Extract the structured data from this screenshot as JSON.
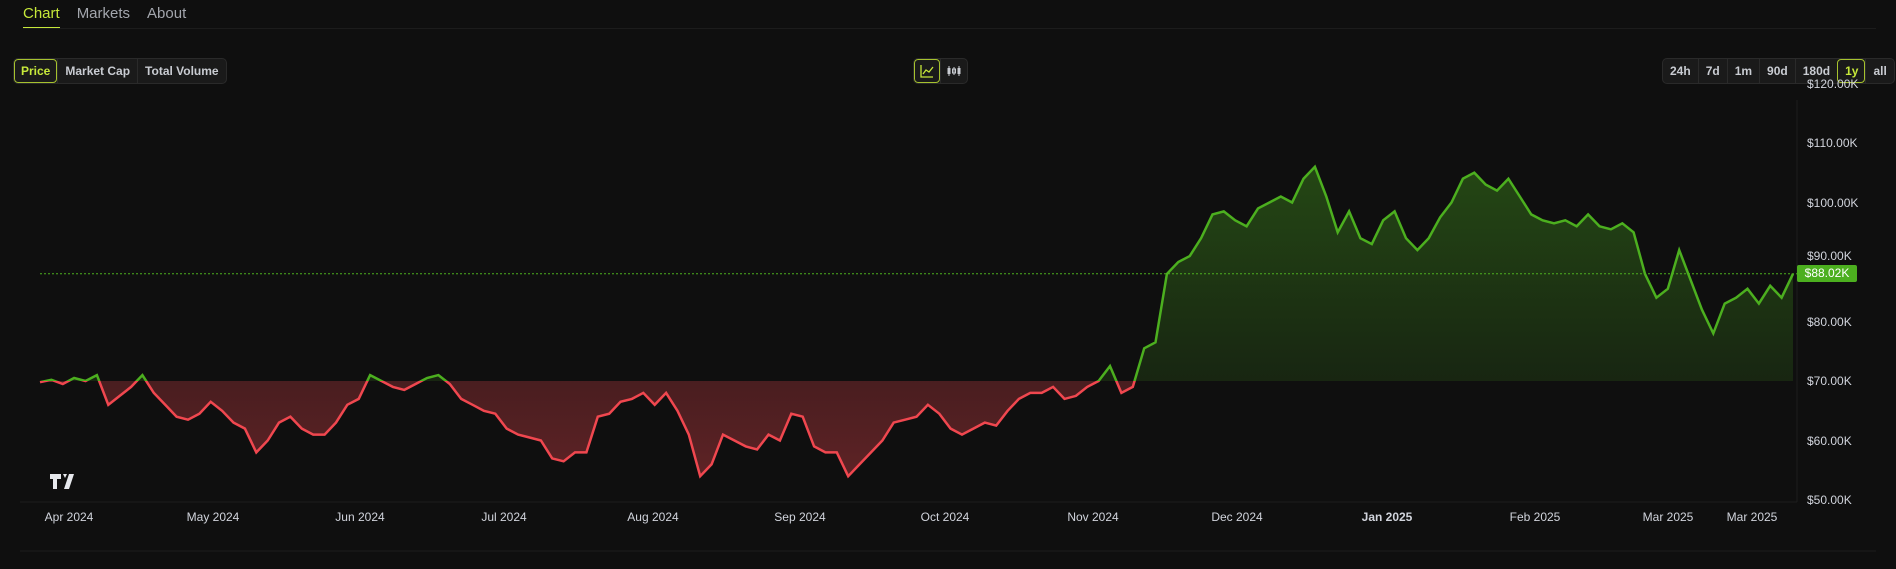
{
  "tabs": [
    {
      "label": "Chart"
    },
    {
      "label": "Markets"
    },
    {
      "label": "About"
    }
  ],
  "metric_buttons": [
    {
      "label": "Price"
    },
    {
      "label": "Market Cap"
    },
    {
      "label": "Total Volume"
    }
  ],
  "chart_type_buttons": [
    {
      "icon": "line-chart-icon"
    },
    {
      "icon": "candlestick-icon"
    }
  ],
  "range_buttons": [
    {
      "label": "24h"
    },
    {
      "label": "7d"
    },
    {
      "label": "1m"
    },
    {
      "label": "90d"
    },
    {
      "label": "180d"
    },
    {
      "label": "1y"
    },
    {
      "label": "all"
    }
  ],
  "colors": {
    "accent": "#c6e83a",
    "up": "#4caf1f",
    "down": "#f0474f"
  },
  "chart_data": {
    "type": "area",
    "baseline": 70000,
    "current_price_label": "$88.02K",
    "current_price": 88020,
    "ylim": [
      47000,
      125000
    ],
    "y_ticks": [
      {
        "v": 120000,
        "label": "$120.00K"
      },
      {
        "v": 110000,
        "label": "$110.00K"
      },
      {
        "v": 100000,
        "label": "$100.00K"
      },
      {
        "v": 90000,
        "label": "$90.00K"
      },
      {
        "v": 80000,
        "label": "$80.00K"
      },
      {
        "v": 70000,
        "label": "$70.00K"
      },
      {
        "v": 60000,
        "label": "$60.00K"
      },
      {
        "v": 50000,
        "label": "$50.00K"
      }
    ],
    "x_ticks": [
      {
        "label": "Apr 2024"
      },
      {
        "label": "May 2024"
      },
      {
        "label": "Jun 2024"
      },
      {
        "label": "Jul 2024"
      },
      {
        "label": "Aug 2024"
      },
      {
        "label": "Sep 2024"
      },
      {
        "label": "Oct 2024"
      },
      {
        "label": "Nov 2024"
      },
      {
        "label": "Dec 2024"
      },
      {
        "label": "Jan 2025"
      },
      {
        "label": "Feb 2025"
      },
      {
        "label": "Mar 2025"
      },
      {
        "label": "Mar 2025"
      }
    ],
    "series": [
      {
        "name": "Price (K USD)",
        "values": [
          69.8,
          70.2,
          69.5,
          70.5,
          70,
          71,
          66,
          67.5,
          69,
          71,
          68,
          66,
          64,
          63.5,
          64.5,
          66.5,
          65,
          63,
          62,
          58,
          60,
          63,
          64,
          62,
          61,
          61,
          63,
          66,
          67,
          71,
          70,
          69,
          68.5,
          69.5,
          70.5,
          71,
          69.5,
          67,
          66,
          65,
          64.5,
          62,
          61,
          60.5,
          60,
          57,
          56.5,
          58,
          58,
          64,
          64.5,
          66.5,
          67,
          68,
          66,
          68,
          65,
          61,
          54,
          56,
          61,
          60,
          59,
          58.5,
          61,
          60,
          64.5,
          64,
          59,
          58,
          58,
          54,
          56,
          58,
          60,
          63,
          63.5,
          64,
          66,
          64.5,
          62,
          61,
          62,
          63,
          62.5,
          65,
          67,
          68,
          68,
          69,
          67,
          67.5,
          69,
          70,
          72.5,
          68,
          69,
          75.5,
          76.5,
          88,
          90,
          91,
          94,
          98,
          98.5,
          97,
          96,
          99,
          100,
          101,
          100,
          104,
          106,
          101,
          95,
          98.5,
          94,
          93,
          97,
          98.5,
          94,
          92,
          94,
          97.5,
          100,
          104,
          105,
          103,
          102,
          104,
          101,
          98,
          97,
          96.5,
          97,
          96,
          98,
          96,
          95.5,
          96.5,
          95,
          88,
          84,
          85.5,
          92,
          87,
          82,
          78,
          83,
          84,
          85.5,
          83,
          86,
          84,
          88.02
        ]
      }
    ]
  }
}
